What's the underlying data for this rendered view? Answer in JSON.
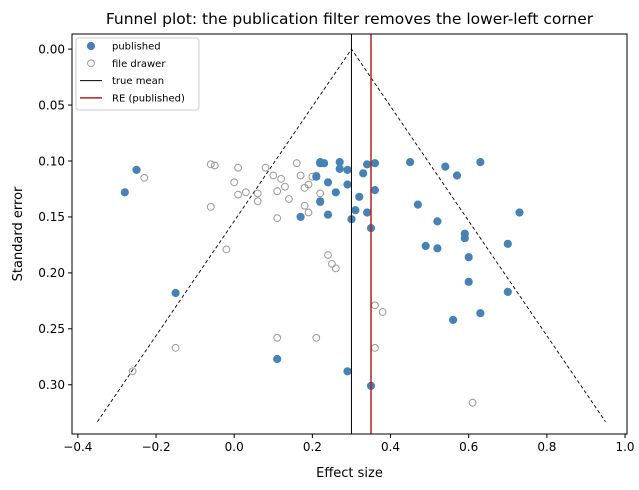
{
  "chart_data": {
    "type": "scatter",
    "title": "Funnel plot: the publication filter removes the lower-left corner",
    "xlabel": "Effect size",
    "ylabel": "Standard error",
    "xlim": [
      -0.415,
      1.005
    ],
    "ylim": [
      0.344,
      -0.0135
    ],
    "y_inverted": true,
    "x_ticks": [
      -0.4,
      -0.2,
      0.0,
      0.2,
      0.4,
      0.6,
      0.8,
      1.0
    ],
    "x_tick_labels": [
      "−0.4",
      "−0.2",
      "0.0",
      "0.2",
      "0.4",
      "0.6",
      "0.8",
      "1.0"
    ],
    "y_ticks": [
      0.0,
      0.05,
      0.1,
      0.15,
      0.2,
      0.25,
      0.3
    ],
    "y_tick_labels": [
      "0.00",
      "0.05",
      "0.10",
      "0.15",
      "0.20",
      "0.25",
      "0.30"
    ],
    "grid": false,
    "legend_position": "top-left",
    "legend": [
      {
        "label": "published",
        "kind": "filled-marker",
        "color": "#4682b4"
      },
      {
        "label": "file drawer",
        "kind": "hollow-marker",
        "color": "#999999"
      },
      {
        "label": "true mean",
        "kind": "line",
        "color": "#000000"
      },
      {
        "label": "RE (published)",
        "kind": "line",
        "color": "#b22222"
      }
    ],
    "reference_lines": {
      "true_mean_x": 0.3,
      "re_published_x": 0.35
    },
    "funnel": {
      "apex": [
        0.3,
        0.0
      ],
      "left_base": [
        -0.35,
        0.333
      ],
      "right_base": [
        0.95,
        0.333
      ],
      "style": "dashed",
      "color": "#000000"
    },
    "series": [
      {
        "name": "published",
        "marker": "filled",
        "color": "#4682b4",
        "points": [
          [
            -0.25,
            0.108
          ],
          [
            -0.28,
            0.128
          ],
          [
            -0.15,
            0.218
          ],
          [
            0.11,
            0.277
          ],
          [
            0.17,
            0.15
          ],
          [
            0.21,
            0.114
          ],
          [
            0.22,
            0.102
          ],
          [
            0.22,
            0.101
          ],
          [
            0.23,
            0.102
          ],
          [
            0.24,
            0.119
          ],
          [
            0.24,
            0.148
          ],
          [
            0.22,
            0.136
          ],
          [
            0.26,
            0.128
          ],
          [
            0.27,
            0.101
          ],
          [
            0.27,
            0.107
          ],
          [
            0.29,
            0.108
          ],
          [
            0.29,
            0.121
          ],
          [
            0.3,
            0.152
          ],
          [
            0.31,
            0.144
          ],
          [
            0.32,
            0.132
          ],
          [
            0.33,
            0.111
          ],
          [
            0.34,
            0.103
          ],
          [
            0.36,
            0.102
          ],
          [
            0.34,
            0.146
          ],
          [
            0.35,
            0.16
          ],
          [
            0.36,
            0.126
          ],
          [
            0.29,
            0.288
          ],
          [
            0.35,
            0.301
          ],
          [
            0.45,
            0.101
          ],
          [
            0.47,
            0.139
          ],
          [
            0.49,
            0.176
          ],
          [
            0.52,
            0.154
          ],
          [
            0.52,
            0.178
          ],
          [
            0.54,
            0.105
          ],
          [
            0.56,
            0.242
          ],
          [
            0.57,
            0.113
          ],
          [
            0.59,
            0.165
          ],
          [
            0.59,
            0.169
          ],
          [
            0.6,
            0.186
          ],
          [
            0.6,
            0.208
          ],
          [
            0.63,
            0.101
          ],
          [
            0.63,
            0.236
          ],
          [
            0.7,
            0.174
          ],
          [
            0.7,
            0.217
          ],
          [
            0.73,
            0.146
          ]
        ]
      },
      {
        "name": "file drawer",
        "marker": "hollow",
        "color": "#999999",
        "points": [
          [
            -0.23,
            0.115
          ],
          [
            -0.15,
            0.267
          ],
          [
            -0.26,
            0.288
          ],
          [
            -0.06,
            0.103
          ],
          [
            -0.05,
            0.104
          ],
          [
            -0.06,
            0.141
          ],
          [
            -0.02,
            0.179
          ],
          [
            0.0,
            0.119
          ],
          [
            0.01,
            0.106
          ],
          [
            0.01,
            0.13
          ],
          [
            0.03,
            0.128
          ],
          [
            0.06,
            0.129
          ],
          [
            0.06,
            0.136
          ],
          [
            0.08,
            0.106
          ],
          [
            0.1,
            0.113
          ],
          [
            0.11,
            0.127
          ],
          [
            0.11,
            0.151
          ],
          [
            0.12,
            0.116
          ],
          [
            0.13,
            0.123
          ],
          [
            0.14,
            0.134
          ],
          [
            0.16,
            0.102
          ],
          [
            0.17,
            0.113
          ],
          [
            0.18,
            0.124
          ],
          [
            0.18,
            0.14
          ],
          [
            0.19,
            0.146
          ],
          [
            0.19,
            0.121
          ],
          [
            0.2,
            0.114
          ],
          [
            0.21,
            0.113
          ],
          [
            0.22,
            0.129
          ],
          [
            0.22,
            0.137
          ],
          [
            0.24,
            0.184
          ],
          [
            0.25,
            0.192
          ],
          [
            0.26,
            0.196
          ],
          [
            0.11,
            0.258
          ],
          [
            0.21,
            0.258
          ],
          [
            0.36,
            0.229
          ],
          [
            0.38,
            0.235
          ],
          [
            0.36,
            0.267
          ],
          [
            0.61,
            0.316
          ]
        ]
      }
    ]
  }
}
